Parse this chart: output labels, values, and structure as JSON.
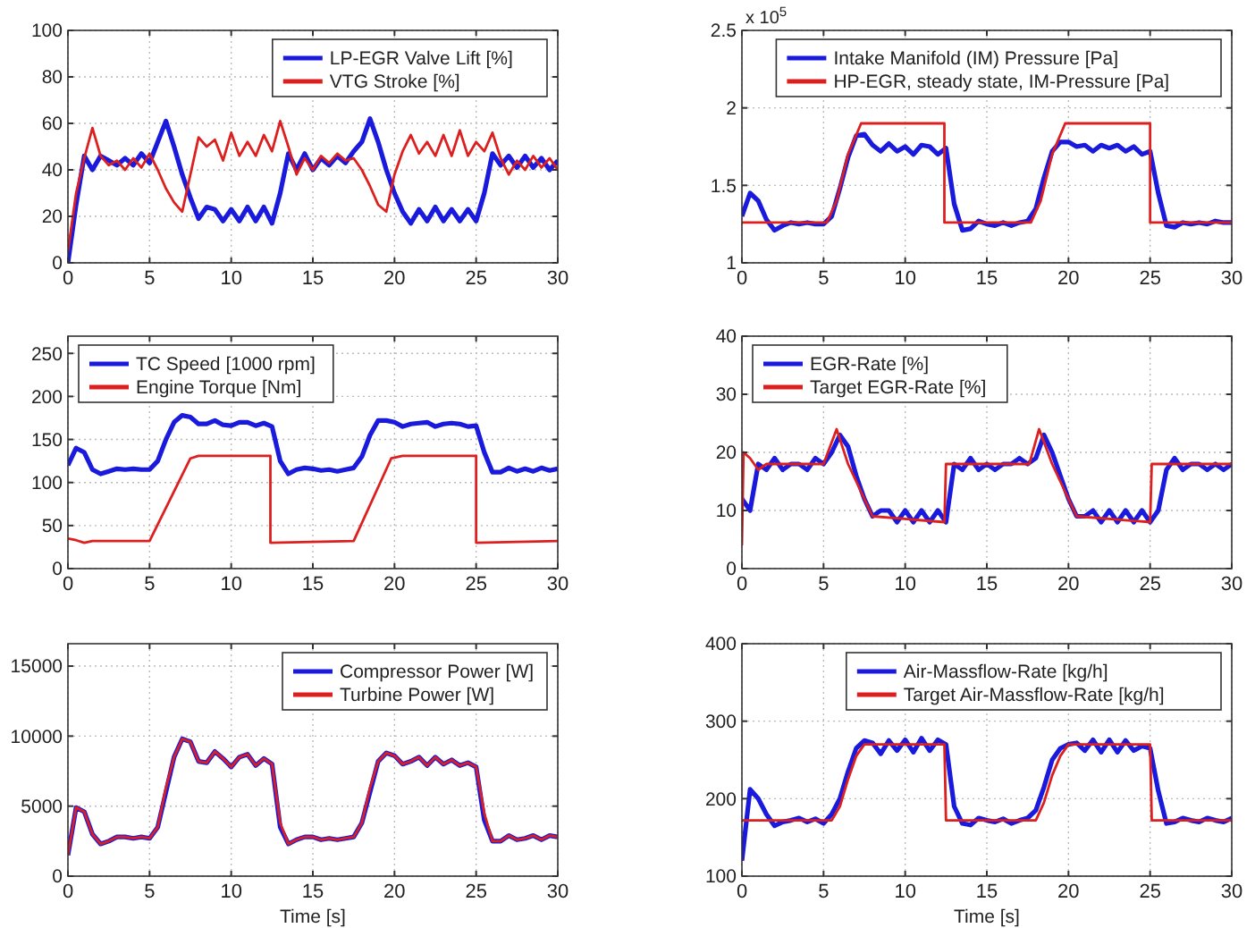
{
  "chart_data": [
    {
      "type": "line",
      "x": [
        0,
        0.5,
        1,
        1.5,
        2,
        2.5,
        3,
        3.5,
        4,
        4.5,
        5,
        5.5,
        6,
        6.5,
        7,
        7.5,
        8,
        8.5,
        9,
        9.5,
        10,
        10.5,
        11,
        11.5,
        12,
        12.5,
        13,
        13.5,
        14,
        14.5,
        15,
        15.5,
        16,
        16.5,
        17,
        17.5,
        18,
        18.5,
        19,
        19.5,
        20,
        20.5,
        21,
        21.5,
        22,
        22.5,
        23,
        23.5,
        24,
        24.5,
        25,
        25.5,
        26,
        26.5,
        27,
        27.5,
        28,
        28.5,
        29,
        29.5,
        30
      ],
      "xlim": [
        0,
        30
      ],
      "xticks": [
        0,
        5,
        10,
        15,
        20,
        25,
        30
      ],
      "ylim": [
        0,
        100
      ],
      "yticks": [
        0,
        20,
        40,
        60,
        80,
        100
      ],
      "grid": true,
      "legend": "top right",
      "series": [
        {
          "name": "LP-EGR Valve Lift [%]",
          "color": "#1a1adc",
          "values": [
            0,
            25,
            46,
            40,
            46,
            44,
            42,
            45,
            42,
            47,
            43,
            52,
            61,
            50,
            38,
            28,
            19,
            24,
            23,
            18,
            23,
            18,
            24,
            18,
            24,
            17,
            30,
            47,
            40,
            47,
            40,
            45,
            42,
            46,
            43,
            48,
            52,
            62,
            52,
            40,
            30,
            22,
            17,
            23,
            18,
            24,
            18,
            23,
            18,
            23,
            18,
            30,
            47,
            42,
            46,
            41,
            46,
            41,
            45,
            40,
            44
          ]
        },
        {
          "name": "VTG Stroke [%]",
          "color": "#dc2020",
          "values": [
            5,
            30,
            45,
            58,
            46,
            42,
            44,
            40,
            45,
            41,
            47,
            40,
            32,
            26,
            22,
            38,
            54,
            50,
            53,
            44,
            56,
            46,
            52,
            46,
            55,
            48,
            61,
            50,
            38,
            45,
            40,
            46,
            43,
            47,
            44,
            45,
            40,
            33,
            25,
            22,
            38,
            48,
            55,
            47,
            52,
            46,
            55,
            46,
            57,
            46,
            52,
            48,
            56,
            45,
            38,
            44,
            40,
            46,
            41,
            45,
            40
          ]
        }
      ]
    },
    {
      "type": "line",
      "x": [
        0,
        0.5,
        1,
        1.5,
        2,
        2.5,
        3,
        3.5,
        4,
        4.5,
        5,
        5.5,
        6,
        6.5,
        7,
        7.5,
        8,
        8.5,
        9,
        9.5,
        10,
        10.5,
        11,
        11.5,
        12,
        12.5,
        13,
        13.5,
        14,
        14.5,
        15,
        15.5,
        16,
        16.5,
        17,
        17.5,
        18,
        18.5,
        19,
        19.5,
        20,
        20.5,
        21,
        21.5,
        22,
        22.5,
        23,
        23.5,
        24,
        24.5,
        25,
        25.5,
        26,
        26.5,
        27,
        27.5,
        28,
        28.5,
        29,
        29.5,
        30
      ],
      "xlim": [
        0,
        30
      ],
      "xticks": [
        0,
        5,
        10,
        15,
        20,
        25,
        30
      ],
      "ylim": [
        1,
        2.5
      ],
      "yticks": [
        1,
        1.5,
        2,
        2.5
      ],
      "grid": true,
      "legend": "top right",
      "annotations": [
        "x 10$^{5}$"
      ],
      "series": [
        {
          "name": "Intake Manifold (IM) Pressure [Pa]",
          "color": "#1a1adc",
          "values": [
            1.3,
            1.45,
            1.4,
            1.28,
            1.21,
            1.24,
            1.26,
            1.25,
            1.26,
            1.25,
            1.25,
            1.3,
            1.48,
            1.68,
            1.82,
            1.83,
            1.76,
            1.72,
            1.77,
            1.72,
            1.75,
            1.7,
            1.76,
            1.75,
            1.7,
            1.74,
            1.38,
            1.21,
            1.22,
            1.27,
            1.25,
            1.24,
            1.26,
            1.24,
            1.26,
            1.27,
            1.35,
            1.55,
            1.72,
            1.78,
            1.78,
            1.75,
            1.76,
            1.72,
            1.76,
            1.74,
            1.76,
            1.72,
            1.75,
            1.7,
            1.72,
            1.45,
            1.24,
            1.23,
            1.26,
            1.25,
            1.26,
            1.25,
            1.27,
            1.26,
            1.26
          ]
        },
        {
          "name": "HP-EGR, steady state, IM-Pressure [Pa]",
          "color": "#dc2020",
          "x": [
            0,
            5.2,
            5.8,
            6.5,
            7.3,
            12.4,
            12.4,
            17.7,
            18.3,
            19,
            19.8,
            25,
            25,
            30
          ],
          "values": [
            1.26,
            1.26,
            1.4,
            1.7,
            1.9,
            1.9,
            1.26,
            1.26,
            1.4,
            1.7,
            1.9,
            1.9,
            1.26,
            1.26
          ]
        }
      ]
    },
    {
      "type": "line",
      "x": [
        0,
        0.5,
        1,
        1.5,
        2,
        2.5,
        3,
        3.5,
        4,
        4.5,
        5,
        5.5,
        6,
        6.5,
        7,
        7.5,
        8,
        8.5,
        9,
        9.5,
        10,
        10.5,
        11,
        11.5,
        12,
        12.5,
        13,
        13.5,
        14,
        14.5,
        15,
        15.5,
        16,
        16.5,
        17,
        17.5,
        18,
        18.5,
        19,
        19.5,
        20,
        20.5,
        21,
        21.5,
        22,
        22.5,
        23,
        23.5,
        24,
        24.5,
        25,
        25.5,
        26,
        26.5,
        27,
        27.5,
        28,
        28.5,
        29,
        29.5,
        30
      ],
      "xlim": [
        0,
        30
      ],
      "xticks": [
        0,
        5,
        10,
        15,
        20,
        25,
        30
      ],
      "ylim": [
        0,
        270
      ],
      "yticks": [
        0,
        50,
        100,
        150,
        200,
        250
      ],
      "grid": true,
      "legend": "top left",
      "series": [
        {
          "name": "TC Speed [1000 rpm]",
          "color": "#1a1adc",
          "values": [
            120,
            140,
            135,
            115,
            110,
            113,
            116,
            115,
            116,
            115,
            115,
            125,
            150,
            170,
            178,
            176,
            168,
            168,
            172,
            167,
            166,
            170,
            170,
            166,
            169,
            165,
            125,
            110,
            115,
            117,
            116,
            114,
            115,
            113,
            115,
            117,
            130,
            155,
            172,
            172,
            170,
            165,
            168,
            169,
            170,
            165,
            168,
            169,
            168,
            165,
            166,
            135,
            112,
            112,
            117,
            113,
            116,
            113,
            117,
            114,
            116
          ]
        },
        {
          "name": "Engine Torque [Nm]",
          "color": "#dc2020",
          "x": [
            0,
            0.5,
            1,
            1.5,
            5,
            7.5,
            8,
            12.4,
            12.4,
            17.5,
            19.8,
            20.5,
            25,
            25,
            30
          ],
          "values": [
            35,
            33,
            30,
            32,
            32,
            128,
            131,
            131,
            30,
            32,
            128,
            131,
            131,
            30,
            32
          ]
        }
      ]
    },
    {
      "type": "line",
      "x": [
        0,
        0.5,
        1,
        1.5,
        2,
        2.5,
        3,
        3.5,
        4,
        4.5,
        5,
        5.5,
        6,
        6.5,
        7,
        7.5,
        8,
        8.5,
        9,
        9.5,
        10,
        10.5,
        11,
        11.5,
        12,
        12.5,
        13,
        13.5,
        14,
        14.5,
        15,
        15.5,
        16,
        16.5,
        17,
        17.5,
        18,
        18.5,
        19,
        19.5,
        20,
        20.5,
        21,
        21.5,
        22,
        22.5,
        23,
        23.5,
        24,
        24.5,
        25,
        25.5,
        26,
        26.5,
        27,
        27.5,
        28,
        28.5,
        29,
        29.5,
        30
      ],
      "xlim": [
        0,
        30
      ],
      "xticks": [
        0,
        5,
        10,
        15,
        20,
        25,
        30
      ],
      "ylim": [
        0,
        40
      ],
      "yticks": [
        0,
        10,
        20,
        30,
        40
      ],
      "grid": true,
      "legend": "top left",
      "series": [
        {
          "name": "EGR-Rate [%]",
          "color": "#1a1adc",
          "values": [
            12,
            10,
            18,
            17,
            19,
            17,
            18,
            18,
            17,
            19,
            18,
            20,
            23,
            21,
            16,
            12,
            9,
            10,
            10,
            8,
            10,
            8,
            10,
            8,
            10,
            8,
            18,
            17,
            19,
            17,
            18,
            17,
            18,
            18,
            19,
            18,
            19,
            23,
            20,
            16,
            12,
            9,
            9,
            10,
            8,
            10,
            8,
            10,
            8,
            10,
            8,
            10,
            17,
            19,
            17,
            18,
            18,
            17,
            18,
            17,
            18
          ]
        },
        {
          "name": "Target EGR-Rate [%]",
          "color": "#dc2020",
          "x": [
            0,
            0.1,
            0.5,
            1,
            1.5,
            5,
            5.8,
            6.5,
            8,
            12.4,
            12.5,
            17.6,
            18.2,
            19,
            20.5,
            25,
            25.1,
            30
          ],
          "values": [
            4,
            20,
            19,
            17,
            18,
            18,
            24,
            18,
            9,
            8,
            18,
            18,
            24,
            18,
            9,
            8,
            18,
            18
          ]
        }
      ]
    },
    {
      "type": "line",
      "x": [
        0,
        0.5,
        1,
        1.5,
        2,
        2.5,
        3,
        3.5,
        4,
        4.5,
        5,
        5.5,
        6,
        6.5,
        7,
        7.5,
        8,
        8.5,
        9,
        9.5,
        10,
        10.5,
        11,
        11.5,
        12,
        12.5,
        13,
        13.5,
        14,
        14.5,
        15,
        15.5,
        16,
        16.5,
        17,
        17.5,
        18,
        18.5,
        19,
        19.5,
        20,
        20.5,
        21,
        21.5,
        22,
        22.5,
        23,
        23.5,
        24,
        24.5,
        25,
        25.5,
        26,
        26.5,
        27,
        27.5,
        28,
        28.5,
        29,
        29.5,
        30
      ],
      "xlim": [
        0,
        30
      ],
      "xticks": [
        0,
        5,
        10,
        15,
        20,
        25,
        30
      ],
      "ylim": [
        0,
        16600
      ],
      "yticks": [
        0,
        5000,
        10000,
        15000
      ],
      "grid": true,
      "legend": "top right",
      "xlabel": "Time [s]",
      "series": [
        {
          "name": "Compressor Power [W]",
          "color": "#1a1adc",
          "values": [
            1500,
            4900,
            4600,
            3000,
            2300,
            2500,
            2800,
            2800,
            2700,
            2800,
            2700,
            3500,
            6000,
            8500,
            9800,
            9600,
            8200,
            8100,
            8900,
            8400,
            7800,
            8500,
            8700,
            7900,
            8400,
            8000,
            3500,
            2300,
            2600,
            2800,
            2800,
            2600,
            2700,
            2600,
            2700,
            2800,
            3800,
            6000,
            8200,
            8800,
            8600,
            8000,
            8200,
            8500,
            7900,
            8500,
            8000,
            8300,
            7900,
            8100,
            7800,
            4000,
            2500,
            2500,
            2900,
            2600,
            2700,
            2900,
            2600,
            2900,
            2800
          ]
        },
        {
          "name": "Turbine Power [W]",
          "color": "#dc2020",
          "values": [
            1500,
            4900,
            4600,
            3000,
            2300,
            2500,
            2800,
            2800,
            2700,
            2800,
            2700,
            3500,
            6300,
            8500,
            9800,
            9600,
            8200,
            8100,
            8900,
            8400,
            7800,
            8500,
            8700,
            7900,
            8400,
            8000,
            3800,
            2300,
            2600,
            2800,
            2800,
            2600,
            2700,
            2600,
            2700,
            2800,
            3800,
            6300,
            8200,
            8800,
            8600,
            8000,
            8200,
            8500,
            7900,
            8500,
            8000,
            8300,
            7900,
            8100,
            7800,
            4500,
            2500,
            2500,
            2900,
            2600,
            2700,
            2900,
            2600,
            2900,
            2800
          ]
        }
      ]
    },
    {
      "type": "line",
      "x": [
        0,
        0.5,
        1,
        1.5,
        2,
        2.5,
        3,
        3.5,
        4,
        4.5,
        5,
        5.5,
        6,
        6.5,
        7,
        7.5,
        8,
        8.5,
        9,
        9.5,
        10,
        10.5,
        11,
        11.5,
        12,
        12.5,
        13,
        13.5,
        14,
        14.5,
        15,
        15.5,
        16,
        16.5,
        17,
        17.5,
        18,
        18.5,
        19,
        19.5,
        20,
        20.5,
        21,
        21.5,
        22,
        22.5,
        23,
        23.5,
        24,
        24.5,
        25,
        25.5,
        26,
        26.5,
        27,
        27.5,
        28,
        28.5,
        29,
        29.5,
        30
      ],
      "xlim": [
        0,
        30
      ],
      "xticks": [
        0,
        5,
        10,
        15,
        20,
        25,
        30
      ],
      "ylim": [
        100,
        400
      ],
      "yticks": [
        100,
        200,
        300,
        400
      ],
      "grid": true,
      "legend": "top right",
      "xlabel": "Time [s]",
      "series": [
        {
          "name": "Air-Massflow-Rate [kg/h]",
          "color": "#1a1adc",
          "values": [
            120,
            212,
            200,
            180,
            165,
            170,
            172,
            175,
            170,
            174,
            168,
            180,
            200,
            235,
            265,
            275,
            272,
            258,
            275,
            262,
            276,
            260,
            278,
            262,
            276,
            270,
            190,
            168,
            166,
            175,
            172,
            170,
            174,
            168,
            172,
            175,
            185,
            215,
            250,
            265,
            270,
            272,
            262,
            276,
            260,
            276,
            260,
            275,
            262,
            268,
            265,
            210,
            168,
            170,
            175,
            172,
            170,
            175,
            172,
            170,
            175
          ]
        },
        {
          "name": "Target Air-Massflow-Rate [kg/h]",
          "color": "#dc2020",
          "x": [
            0,
            5.5,
            6,
            6.5,
            7,
            7.5,
            12.4,
            12.5,
            18,
            18.5,
            19,
            19.5,
            20,
            25,
            25.1,
            30
          ],
          "values": [
            172,
            172,
            190,
            225,
            255,
            270,
            270,
            172,
            172,
            195,
            230,
            255,
            270,
            270,
            172,
            172
          ]
        }
      ]
    }
  ]
}
